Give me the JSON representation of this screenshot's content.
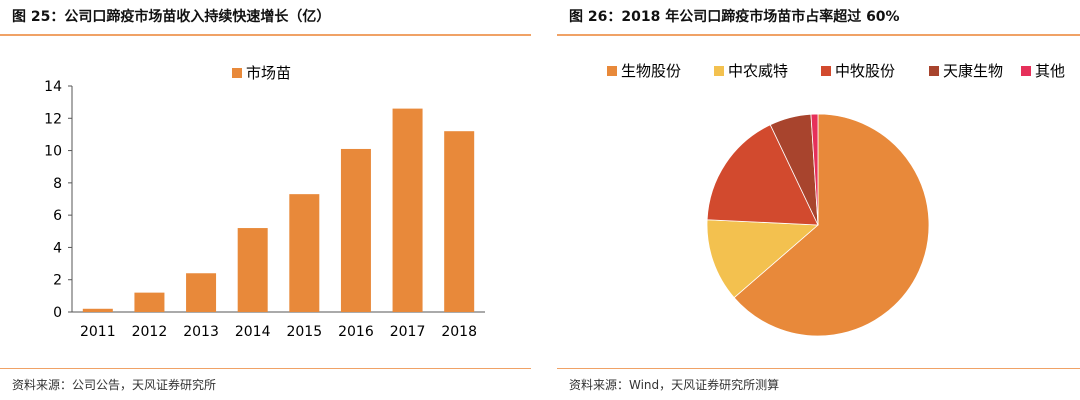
{
  "left_panel": {
    "title": "图 25：公司口蹄疫市场苗收入持续快速增长（亿）",
    "source": "资料来源：公司公告，天风证券研究所"
  },
  "right_panel": {
    "title": "图 26：2018 年公司口蹄疫市场苗市占率超过 60%",
    "source": "资料来源：Wind，天风证券研究所测算"
  },
  "colors": {
    "accent_rule": "#f0a266"
  },
  "chart_data": [
    {
      "type": "bar",
      "categories": [
        "2011",
        "2012",
        "2013",
        "2014",
        "2015",
        "2016",
        "2017",
        "2018"
      ],
      "series": [
        {
          "name": "市场苗",
          "values": [
            0.2,
            1.2,
            2.4,
            5.2,
            7.3,
            10.1,
            12.6,
            11.2
          ],
          "color": "#e8893a"
        }
      ],
      "ylim": [
        0,
        14
      ],
      "yticks": [
        "0",
        "2",
        "4",
        "6",
        "8",
        "10",
        "12",
        "14"
      ],
      "grid": false,
      "legend_position": "top"
    },
    {
      "type": "pie",
      "labels": [
        "生物股份",
        "中农威特",
        "中牧股份",
        "天康生物",
        "其他"
      ],
      "values": [
        63,
        12,
        17,
        6,
        1
      ],
      "colors": [
        "#e8893a",
        "#f3c14f",
        "#d24a2e",
        "#a8442d",
        "#e6305a"
      ],
      "legend_position": "top"
    }
  ]
}
